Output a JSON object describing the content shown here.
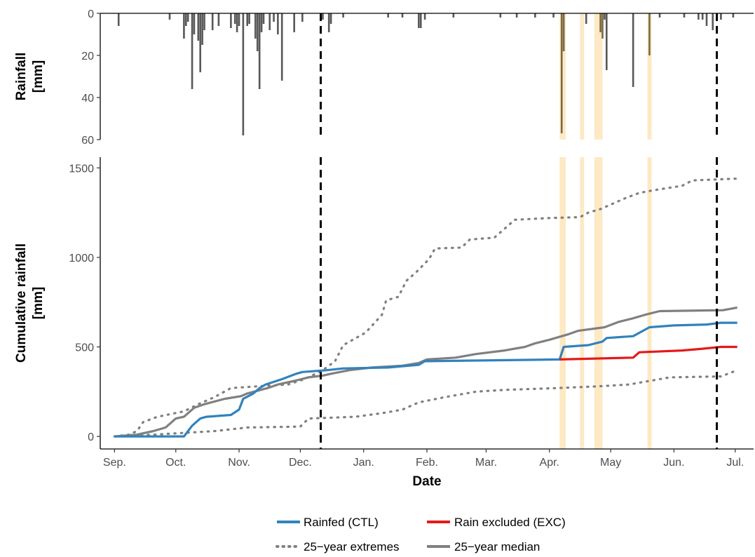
{
  "chart_data": [
    {
      "type": "bar",
      "panel": "top",
      "ylabel_lines": [
        "Rainfall",
        "[mm]"
      ],
      "y_ticks": [
        0,
        20,
        40,
        60
      ],
      "ylim": [
        0,
        60
      ],
      "y_reversed": true,
      "x_range": [
        "2019-08-25",
        "2020-07-10"
      ],
      "bar_color": "#595959",
      "events_mm": [
        [
          "2019-09-03",
          6
        ],
        [
          "2019-09-28",
          3
        ],
        [
          "2019-10-05",
          12
        ],
        [
          "2019-10-06",
          6
        ],
        [
          "2019-10-07",
          4
        ],
        [
          "2019-10-09",
          36
        ],
        [
          "2019-10-10",
          10
        ],
        [
          "2019-10-12",
          13
        ],
        [
          "2019-10-13",
          28
        ],
        [
          "2019-10-14",
          15
        ],
        [
          "2019-10-15",
          8
        ],
        [
          "2019-10-19",
          8
        ],
        [
          "2019-10-22",
          6
        ],
        [
          "2019-10-28",
          7
        ],
        [
          "2019-10-30",
          5
        ],
        [
          "2019-10-31",
          9
        ],
        [
          "2019-11-01",
          6
        ],
        [
          "2019-11-03",
          58
        ],
        [
          "2019-11-05",
          6
        ],
        [
          "2019-11-06",
          5
        ],
        [
          "2019-11-09",
          12
        ],
        [
          "2019-11-10",
          18
        ],
        [
          "2019-11-11",
          36
        ],
        [
          "2019-11-12",
          9
        ],
        [
          "2019-11-13",
          5
        ],
        [
          "2019-11-16",
          8
        ],
        [
          "2019-11-18",
          4
        ],
        [
          "2019-11-20",
          10
        ],
        [
          "2019-11-22",
          32
        ],
        [
          "2019-11-28",
          9
        ],
        [
          "2019-12-02",
          4
        ],
        [
          "2019-12-12",
          3
        ],
        [
          "2019-12-15",
          9
        ],
        [
          "2019-12-16",
          5
        ],
        [
          "2019-12-22",
          2
        ],
        [
          "2020-01-13",
          2
        ],
        [
          "2020-01-20",
          2
        ],
        [
          "2020-01-28",
          7
        ],
        [
          "2020-01-29",
          7
        ],
        [
          "2020-01-31",
          3
        ],
        [
          "2020-02-14",
          2
        ],
        [
          "2020-03-08",
          2
        ],
        [
          "2020-03-16",
          2
        ],
        [
          "2020-03-25",
          2
        ],
        [
          "2020-04-03",
          2
        ],
        [
          "2020-04-07",
          57
        ],
        [
          "2020-04-08",
          18
        ],
        [
          "2020-04-19",
          5
        ],
        [
          "2020-04-26",
          9
        ],
        [
          "2020-04-27",
          12
        ],
        [
          "2020-04-28",
          3
        ],
        [
          "2020-04-29",
          27
        ],
        [
          "2020-05-12",
          35
        ],
        [
          "2020-05-20",
          20
        ],
        [
          "2020-05-25",
          2
        ],
        [
          "2020-06-06",
          2
        ],
        [
          "2020-06-13",
          3
        ],
        [
          "2020-06-15",
          3
        ],
        [
          "2020-06-17",
          6
        ],
        [
          "2020-06-20",
          8
        ],
        [
          "2020-06-24",
          3
        ],
        [
          "2020-06-30",
          2
        ]
      ]
    },
    {
      "type": "line",
      "panel": "bottom",
      "ylabel_lines": [
        "Cumulative rainfall",
        "[mm]"
      ],
      "xlabel": "Date",
      "x_ticks": [
        {
          "date": "2019-09-01",
          "label": "Sep."
        },
        {
          "date": "2019-10-01",
          "label": "Oct."
        },
        {
          "date": "2019-11-01",
          "label": "Nov."
        },
        {
          "date": "2019-12-01",
          "label": "Dec."
        },
        {
          "date": "2020-01-01",
          "label": "Jan."
        },
        {
          "date": "2020-02-01",
          "label": "Feb."
        },
        {
          "date": "2020-03-01",
          "label": "Mar."
        },
        {
          "date": "2020-04-01",
          "label": "Apr."
        },
        {
          "date": "2020-05-01",
          "label": "May"
        },
        {
          "date": "2020-06-01",
          "label": "Jun."
        },
        {
          "date": "2020-07-01",
          "label": "Jul."
        }
      ],
      "y_ticks": [
        0,
        500,
        1000,
        1500
      ],
      "ylim": [
        -70,
        1560
      ],
      "x_range": [
        "2019-08-25",
        "2020-07-10"
      ],
      "reference_dates": [
        "2019-12-11",
        "2020-06-22"
      ],
      "exclusion_periods": [
        [
          "2020-04-06",
          "2020-04-09"
        ],
        [
          "2020-04-16",
          "2020-04-18"
        ],
        [
          "2020-04-23",
          "2020-04-27"
        ],
        [
          "2020-05-19",
          "2020-05-21"
        ]
      ],
      "series": [
        {
          "name": "25−year extremes",
          "style": "dotted",
          "color": "#808080",
          "points": [
            [
              "2019-09-01",
              0
            ],
            [
              "2019-09-08",
              10
            ],
            [
              "2019-09-12",
              30
            ],
            [
              "2019-09-15",
              80
            ],
            [
              "2019-09-22",
              110
            ],
            [
              "2019-10-05",
              140
            ],
            [
              "2019-10-12",
              180
            ],
            [
              "2019-10-20",
              220
            ],
            [
              "2019-10-28",
              270
            ],
            [
              "2019-11-10",
              280
            ],
            [
              "2019-11-25",
              290
            ],
            [
              "2019-12-03",
              320
            ],
            [
              "2019-12-12",
              370
            ],
            [
              "2019-12-18",
              420
            ],
            [
              "2019-12-22",
              510
            ],
            [
              "2020-01-02",
              580
            ],
            [
              "2020-01-10",
              680
            ],
            [
              "2020-01-12",
              760
            ],
            [
              "2020-01-18",
              780
            ],
            [
              "2020-01-22",
              870
            ],
            [
              "2020-01-27",
              920
            ],
            [
              "2020-02-02",
              990
            ],
            [
              "2020-02-05",
              1050
            ],
            [
              "2020-02-18",
              1055
            ],
            [
              "2020-02-22",
              1100
            ],
            [
              "2020-03-05",
              1110
            ],
            [
              "2020-03-12",
              1180
            ],
            [
              "2020-03-15",
              1210
            ],
            [
              "2020-04-01",
              1220
            ],
            [
              "2020-04-16",
              1225
            ],
            [
              "2020-04-20",
              1250
            ],
            [
              "2020-04-26",
              1270
            ],
            [
              "2020-05-02",
              1300
            ],
            [
              "2020-05-08",
              1330
            ],
            [
              "2020-05-15",
              1360
            ],
            [
              "2020-05-22",
              1375
            ],
            [
              "2020-06-05",
              1400
            ],
            [
              "2020-06-10",
              1430
            ],
            [
              "2020-07-02",
              1440
            ]
          ]
        },
        {
          "name": "25−year extremes",
          "style": "dotted",
          "color": "#808080",
          "points": [
            [
              "2019-09-01",
              0
            ],
            [
              "2019-09-20",
              10
            ],
            [
              "2019-10-20",
              30
            ],
            [
              "2019-11-05",
              50
            ],
            [
              "2019-12-01",
              55
            ],
            [
              "2019-12-05",
              100
            ],
            [
              "2019-12-28",
              110
            ],
            [
              "2020-01-10",
              130
            ],
            [
              "2020-01-20",
              150
            ],
            [
              "2020-01-28",
              190
            ],
            [
              "2020-02-10",
              220
            ],
            [
              "2020-02-25",
              250
            ],
            [
              "2020-03-10",
              260
            ],
            [
              "2020-04-05",
              270
            ],
            [
              "2020-04-25",
              280
            ],
            [
              "2020-05-10",
              290
            ],
            [
              "2020-05-20",
              310
            ],
            [
              "2020-05-30",
              330
            ],
            [
              "2020-06-24",
              335
            ],
            [
              "2020-07-02",
              370
            ]
          ]
        },
        {
          "name": "25−year median",
          "style": "solid",
          "color": "#808080",
          "points": [
            [
              "2019-09-01",
              0
            ],
            [
              "2019-09-12",
              10
            ],
            [
              "2019-09-20",
              30
            ],
            [
              "2019-09-26",
              50
            ],
            [
              "2019-10-01",
              100
            ],
            [
              "2019-10-05",
              110
            ],
            [
              "2019-10-10",
              160
            ],
            [
              "2019-10-15",
              180
            ],
            [
              "2019-10-25",
              210
            ],
            [
              "2019-11-02",
              225
            ],
            [
              "2019-11-05",
              240
            ],
            [
              "2019-11-15",
              270
            ],
            [
              "2019-11-20",
              290
            ],
            [
              "2019-11-28",
              310
            ],
            [
              "2019-12-05",
              330
            ],
            [
              "2019-12-12",
              340
            ],
            [
              "2019-12-16",
              350
            ],
            [
              "2019-12-25",
              370
            ],
            [
              "2020-01-05",
              385
            ],
            [
              "2020-01-20",
              395
            ],
            [
              "2020-01-28",
              410
            ],
            [
              "2020-02-01",
              430
            ],
            [
              "2020-02-15",
              440
            ],
            [
              "2020-02-25",
              460
            ],
            [
              "2020-03-10",
              480
            ],
            [
              "2020-03-20",
              500
            ],
            [
              "2020-03-25",
              520
            ],
            [
              "2020-04-01",
              540
            ],
            [
              "2020-04-10",
              570
            ],
            [
              "2020-04-15",
              590
            ],
            [
              "2020-04-28",
              610
            ],
            [
              "2020-05-05",
              640
            ],
            [
              "2020-05-12",
              660
            ],
            [
              "2020-05-18",
              680
            ],
            [
              "2020-05-25",
              700
            ],
            [
              "2020-06-25",
              705
            ],
            [
              "2020-07-02",
              720
            ]
          ]
        },
        {
          "name": "Rainfed (CTL)",
          "style": "solid",
          "color": "#3182bd",
          "points": [
            [
              "2019-09-01",
              0
            ],
            [
              "2019-10-05",
              0
            ],
            [
              "2019-10-07",
              30
            ],
            [
              "2019-10-09",
              60
            ],
            [
              "2019-10-13",
              100
            ],
            [
              "2019-10-16",
              110
            ],
            [
              "2019-10-28",
              120
            ],
            [
              "2019-11-01",
              150
            ],
            [
              "2019-11-03",
              210
            ],
            [
              "2019-11-08",
              240
            ],
            [
              "2019-11-11",
              270
            ],
            [
              "2019-11-14",
              290
            ],
            [
              "2019-11-22",
              320
            ],
            [
              "2019-11-29",
              350
            ],
            [
              "2019-12-02",
              360
            ],
            [
              "2019-12-14",
              370
            ],
            [
              "2019-12-22",
              380
            ],
            [
              "2020-01-13",
              385
            ],
            [
              "2020-01-28",
              400
            ],
            [
              "2020-01-31",
              420
            ],
            [
              "2020-04-06",
              430
            ],
            [
              "2020-04-08",
              500
            ],
            [
              "2020-04-20",
              510
            ],
            [
              "2020-04-27",
              530
            ],
            [
              "2020-04-29",
              550
            ],
            [
              "2020-05-12",
              560
            ],
            [
              "2020-05-20",
              610
            ],
            [
              "2020-06-01",
              620
            ],
            [
              "2020-06-17",
              625
            ],
            [
              "2020-06-24",
              635
            ],
            [
              "2020-07-02",
              635
            ]
          ]
        },
        {
          "name": "Rain excluded (EXC)",
          "style": "solid",
          "color": "#e31a1c",
          "points": [
            [
              "2020-04-06",
              430
            ],
            [
              "2020-05-12",
              440
            ],
            [
              "2020-05-15",
              470
            ],
            [
              "2020-06-05",
              480
            ],
            [
              "2020-06-15",
              490
            ],
            [
              "2020-06-24",
              500
            ],
            [
              "2020-07-02",
              500
            ]
          ]
        }
      ]
    }
  ],
  "legend": {
    "items": [
      {
        "label": "Rainfed (CTL)",
        "color": "#3182bd",
        "style": "solid"
      },
      {
        "label": "Rain excluded (EXC)",
        "color": "#e31a1c",
        "style": "solid"
      },
      {
        "label": "25−year extremes",
        "color": "#808080",
        "style": "dotted"
      },
      {
        "label": "25−year median",
        "color": "#808080",
        "style": "solid"
      }
    ]
  },
  "colors": {
    "exclusion_shade": "#fde9c4",
    "reference_line": "#000000",
    "axis": "#000000",
    "tick_text": "#4d4d4d"
  }
}
